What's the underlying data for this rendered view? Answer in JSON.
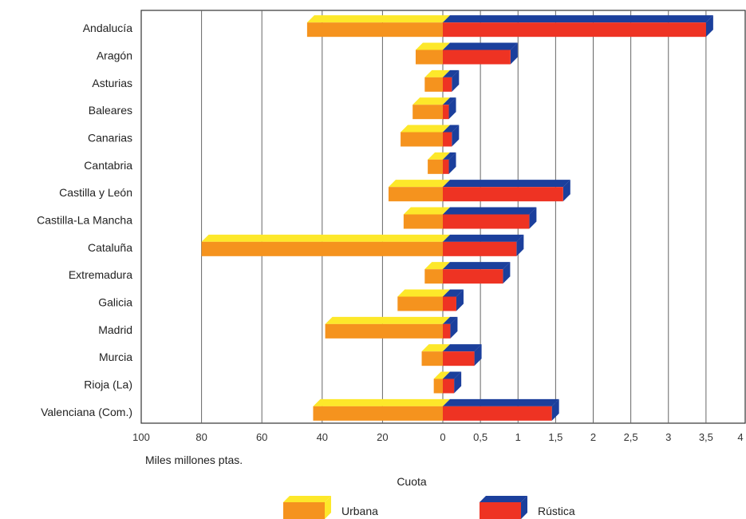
{
  "chart_data": {
    "type": "bar",
    "title": "",
    "categories": [
      "Andalucía",
      "Aragón",
      "Asturias",
      "Baleares",
      "Canarias",
      "Cantabria",
      "Castilla y León",
      "Castilla-La Mancha",
      "Cataluña",
      "Extremadura",
      "Galicia",
      "Madrid",
      "Murcia",
      "Rioja (La)",
      "Valenciana (Com.)"
    ],
    "series": [
      {
        "name": "Urbana",
        "values": [
          45,
          9,
          6,
          10,
          14,
          5,
          18,
          13,
          80,
          6,
          15,
          39,
          7,
          3,
          43
        ],
        "color_front": "#f5931e",
        "color_top": "#fde82a"
      },
      {
        "name": "Rústica",
        "values": [
          3.5,
          0.9,
          0.12,
          0.08,
          0.12,
          0.08,
          1.6,
          1.15,
          0.98,
          0.8,
          0.18,
          0.1,
          0.42,
          0.15,
          1.45
        ],
        "color_front": "#ee3323",
        "color_top": "#1b3f9c"
      }
    ],
    "left_axis": {
      "label": "Miles millones ptas.",
      "ticks": [
        "100",
        "80",
        "60",
        "40",
        "20",
        "0"
      ],
      "range": [
        100,
        0
      ]
    },
    "right_axis": {
      "label": "Cuota",
      "ticks": [
        "0",
        "0,5",
        "1",
        "1,5",
        "2",
        "2,5",
        "3",
        "3,5",
        "4"
      ],
      "range": [
        0,
        4
      ]
    },
    "grid": true,
    "legend_position": "bottom"
  },
  "legend": {
    "urbana": "Urbana",
    "rustica": "Rústica"
  }
}
